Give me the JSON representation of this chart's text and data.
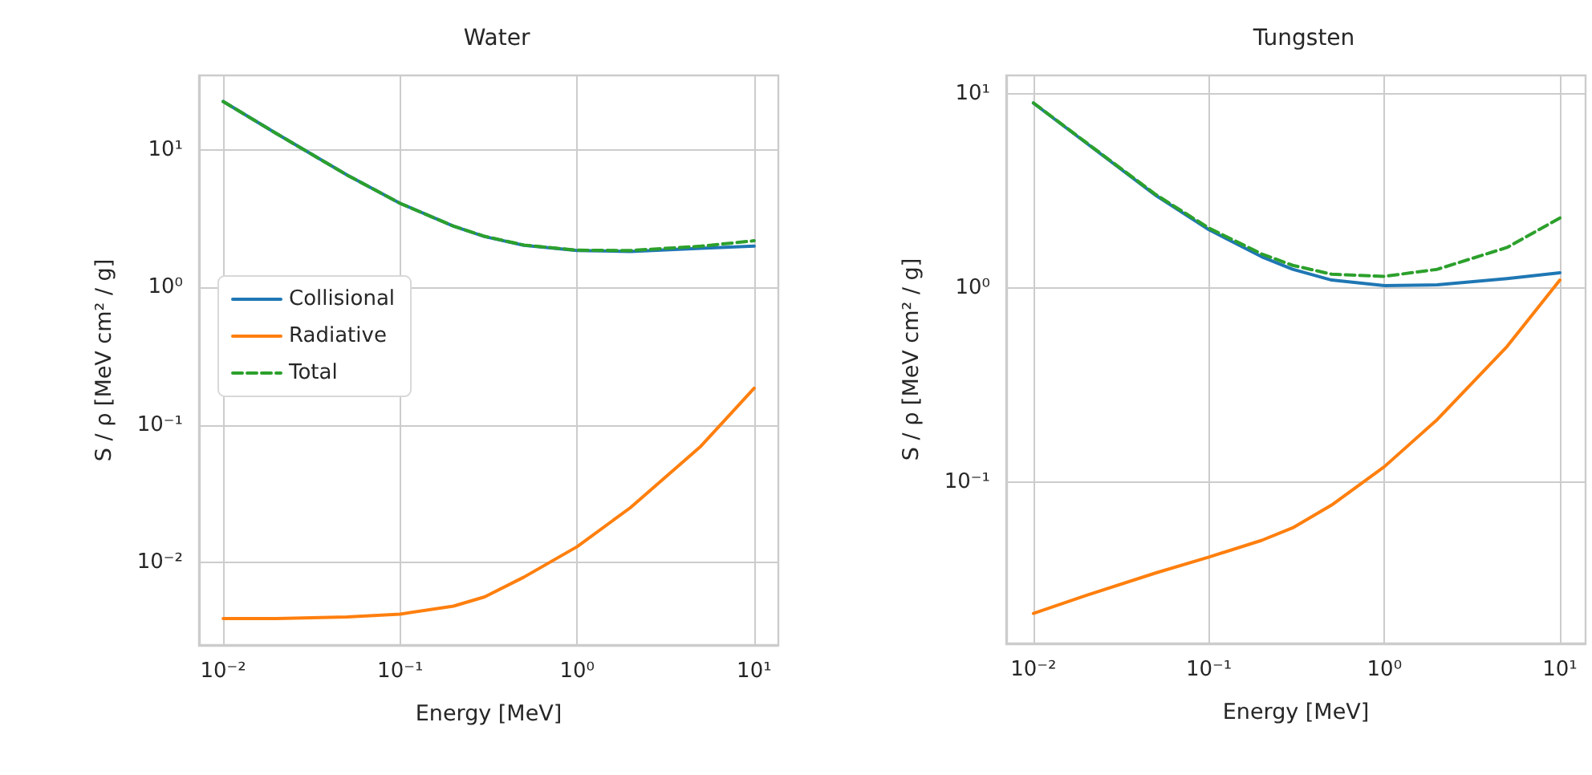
{
  "chart_data": [
    {
      "type": "line",
      "title": "Water",
      "xlabel": "Energy [MeV]",
      "ylabel": "S / ρ [MeV cm² / g]",
      "log": "xy",
      "grid": true,
      "legend": "center left",
      "marker": "none",
      "x": [
        0.01,
        0.02,
        0.05,
        0.1,
        0.2,
        0.3,
        0.5,
        1,
        2,
        5,
        10
      ],
      "xlim": [
        0.0073,
        13.7
      ],
      "ylim": [
        0.0025,
        35
      ],
      "xticks": [
        {
          "value": 0.01,
          "label": "10⁻²"
        },
        {
          "value": 0.1,
          "label": "10⁻¹"
        },
        {
          "value": 1,
          "label": "10⁰"
        },
        {
          "value": 10,
          "label": "10¹"
        }
      ],
      "yticks": [
        {
          "value": 0.01,
          "label": "10⁻²"
        },
        {
          "value": 0.1,
          "label": "10⁻¹"
        },
        {
          "value": 1,
          "label": "10⁰"
        },
        {
          "value": 10,
          "label": "10¹"
        }
      ],
      "series": [
        {
          "name": "Collisional",
          "color": "#1f77b4",
          "line_style": "solid",
          "values": [
            22.6,
            13.2,
            6.6,
            4.1,
            2.8,
            2.35,
            2.03,
            1.86,
            1.83,
            1.93,
            2.0
          ]
        },
        {
          "name": "Radiative",
          "color": "#ff7f0e",
          "line_style": "solid",
          "values": [
            0.0039,
            0.0039,
            0.004,
            0.0042,
            0.0048,
            0.0056,
            0.0078,
            0.013,
            0.025,
            0.07,
            0.185
          ]
        },
        {
          "name": "Total",
          "color": "#2ca02c",
          "line_style": "dashed",
          "values": [
            22.6,
            13.2,
            6.6,
            4.1,
            2.8,
            2.36,
            2.04,
            1.87,
            1.86,
            2.0,
            2.19
          ]
        }
      ]
    },
    {
      "type": "line",
      "title": "Tungsten",
      "xlabel": "Energy [MeV]",
      "ylabel": "S / ρ [MeV cm² / g]",
      "log": "xy",
      "grid": true,
      "legend": false,
      "marker": "none",
      "x": [
        0.01,
        0.02,
        0.05,
        0.1,
        0.2,
        0.3,
        0.5,
        1,
        2,
        5,
        10
      ],
      "xlim": [
        0.007,
        14
      ],
      "ylim": [
        0.0147,
        12.5
      ],
      "xticks": [
        {
          "value": 0.01,
          "label": "10⁻²"
        },
        {
          "value": 0.1,
          "label": "10⁻¹"
        },
        {
          "value": 1,
          "label": "10⁰"
        },
        {
          "value": 10,
          "label": "10¹"
        }
      ],
      "yticks": [
        {
          "value": 0.1,
          "label": "10⁻¹"
        },
        {
          "value": 1,
          "label": "10⁰"
        },
        {
          "value": 10,
          "label": "10¹"
        }
      ],
      "series": [
        {
          "color": "#1f77b4",
          "line_style": "solid",
          "values": [
            9.0,
            5.6,
            3.0,
            2.0,
            1.45,
            1.25,
            1.1,
            1.03,
            1.04,
            1.12,
            1.2
          ]
        },
        {
          "color": "#ff7f0e",
          "line_style": "solid",
          "values": [
            0.021,
            0.026,
            0.034,
            0.041,
            0.05,
            0.058,
            0.076,
            0.12,
            0.21,
            0.5,
            1.1
          ]
        },
        {
          "color": "#2ca02c",
          "line_style": "dashed",
          "values": [
            9.02,
            5.63,
            3.03,
            2.04,
            1.5,
            1.31,
            1.18,
            1.15,
            1.25,
            1.62,
            2.3
          ]
        }
      ]
    }
  ]
}
